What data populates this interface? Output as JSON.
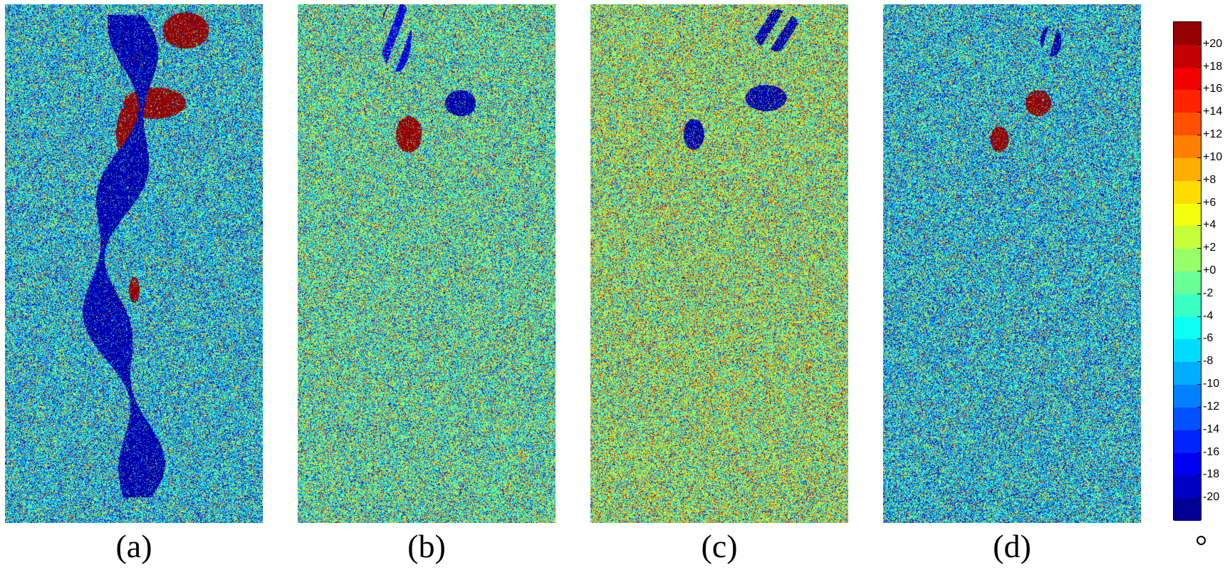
{
  "chart_data": [
    {
      "type": "heatmap",
      "label": "(a)",
      "description_key": "a",
      "colormap": "jet",
      "value_range": [
        -22,
        22
      ],
      "dominant_value": -6,
      "features": [
        {
          "kind": "high",
          "value": 21,
          "region": "top center"
        },
        {
          "kind": "high",
          "value": 21,
          "region": "upper center"
        },
        {
          "kind": "low",
          "value": -20,
          "region": "central vertical band"
        }
      ]
    },
    {
      "type": "heatmap",
      "label": "(b)",
      "colormap": "jet",
      "value_range": [
        -22,
        22
      ],
      "dominant_value": -2,
      "features": [
        {
          "kind": "high",
          "value": 20,
          "region": "upper center"
        },
        {
          "kind": "low",
          "value": -20,
          "region": "top center"
        }
      ]
    },
    {
      "type": "heatmap",
      "label": "(c)",
      "colormap": "jet",
      "value_range": [
        -22,
        22
      ],
      "dominant_value": 1,
      "features": [
        {
          "kind": "low",
          "value": -20,
          "region": "top center"
        }
      ]
    },
    {
      "type": "heatmap",
      "label": "(d)",
      "colormap": "jet",
      "value_range": [
        -22,
        22
      ],
      "dominant_value": -6,
      "features": [
        {
          "kind": "high",
          "value": 21,
          "region": "upper center"
        }
      ]
    }
  ],
  "colorbar": {
    "ticks": [
      "+20",
      "+18",
      "+16",
      "+14",
      "+12",
      "+10",
      "+8",
      "+6",
      "+4",
      "+2",
      "+0",
      "-2",
      "-4",
      "-6",
      "-8",
      "-10",
      "-12",
      "-14",
      "-16",
      "-18",
      "-20"
    ],
    "segments": 22,
    "unit_symbol": "○"
  }
}
